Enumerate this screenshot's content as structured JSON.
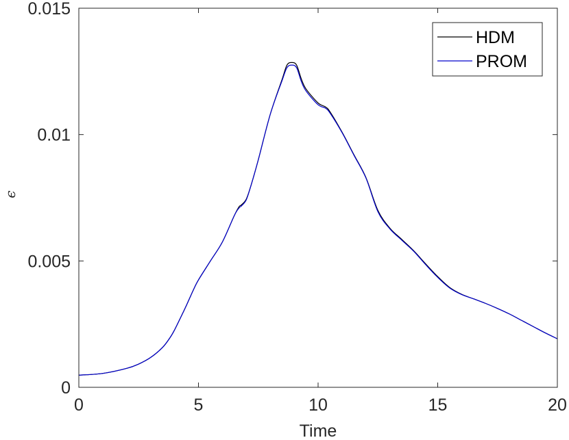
{
  "chart_data": {
    "type": "line",
    "title": "",
    "xlabel": "Time",
    "ylabel": "ϵ",
    "xlim": [
      0,
      20
    ],
    "ylim": [
      0,
      0.015
    ],
    "xticks": [
      0,
      5,
      10,
      15,
      20
    ],
    "xtick_labels": [
      "0",
      "5",
      "10",
      "15",
      "20"
    ],
    "yticks": [
      0,
      0.005,
      0.01,
      0.015
    ],
    "ytick_labels": [
      "0",
      "0.005",
      "0.01",
      "0.015"
    ],
    "grid": false,
    "legend_position": "top-right",
    "series": [
      {
        "name": "HDM",
        "color": "#000000",
        "x": [
          0,
          1,
          2,
          2.5,
          3,
          3.5,
          3.8,
          4,
          4.3,
          4.5,
          4.8,
          5,
          5.5,
          6,
          6.5,
          6.7,
          6.8,
          7,
          7.2,
          7.5,
          8,
          8.5,
          8.7,
          8.9,
          9.1,
          9.3,
          9.5,
          10,
          10.3,
          10.5,
          11,
          11.5,
          12,
          12.5,
          13,
          13.5,
          14,
          14.5,
          15,
          15.5,
          16,
          16.5,
          17,
          17.5,
          18,
          18.5,
          19,
          19.5,
          20
        ],
        "y": [
          0.00048,
          0.00055,
          0.00075,
          0.00092,
          0.00118,
          0.00158,
          0.00195,
          0.00227,
          0.00285,
          0.00325,
          0.00388,
          0.00425,
          0.005,
          0.00575,
          0.0068,
          0.00715,
          0.00722,
          0.00745,
          0.008,
          0.009,
          0.0108,
          0.0122,
          0.01275,
          0.01285,
          0.01275,
          0.0122,
          0.0118,
          0.01125,
          0.0111,
          0.0109,
          0.0101,
          0.0092,
          0.0083,
          0.007,
          0.0063,
          0.00585,
          0.0054,
          0.00488,
          0.00438,
          0.00395,
          0.00368,
          0.0035,
          0.00332,
          0.00312,
          0.0029,
          0.00265,
          0.0024,
          0.00215,
          0.00192
        ]
      },
      {
        "name": "PROM",
        "color": "#0000cc",
        "x": [
          0,
          1,
          2,
          2.5,
          3,
          3.5,
          3.8,
          4,
          4.3,
          4.5,
          4.8,
          5,
          5.5,
          6,
          6.5,
          6.7,
          6.8,
          7,
          7.2,
          7.5,
          8,
          8.5,
          8.7,
          8.9,
          9.1,
          9.3,
          9.5,
          10,
          10.3,
          10.5,
          11,
          11.5,
          12,
          12.5,
          13,
          13.5,
          14,
          14.5,
          15,
          15.5,
          16,
          16.5,
          17,
          17.5,
          18,
          18.5,
          19,
          19.5,
          20
        ],
        "y": [
          0.00048,
          0.00055,
          0.00075,
          0.00092,
          0.00118,
          0.00158,
          0.00195,
          0.00227,
          0.00285,
          0.00325,
          0.00388,
          0.00425,
          0.005,
          0.00575,
          0.0068,
          0.0071,
          0.00718,
          0.00742,
          0.008,
          0.009,
          0.0108,
          0.01215,
          0.01265,
          0.01275,
          0.01265,
          0.0121,
          0.01172,
          0.01118,
          0.01105,
          0.01085,
          0.01008,
          0.00918,
          0.00828,
          0.00695,
          0.00627,
          0.00582,
          0.00538,
          0.00485,
          0.00435,
          0.00393,
          0.00367,
          0.0035,
          0.00332,
          0.00312,
          0.0029,
          0.00265,
          0.0024,
          0.00215,
          0.00192
        ]
      }
    ]
  }
}
